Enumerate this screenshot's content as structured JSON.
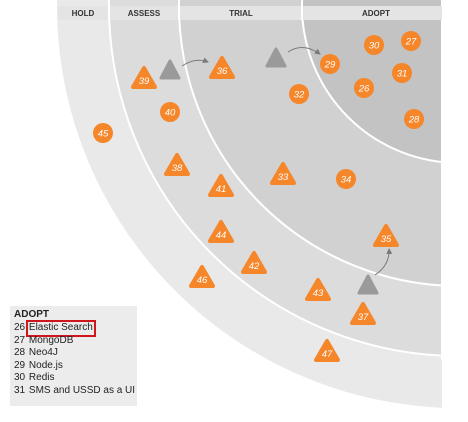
{
  "rings": [
    {
      "label": "HOLD",
      "color": "#e9e9e9"
    },
    {
      "label": "ASSESS",
      "color": "#dcdcdc"
    },
    {
      "label": "TRIAL",
      "color": "#d1d1d1"
    },
    {
      "label": "ADOPT",
      "color": "#c3c3c3"
    }
  ],
  "colors": {
    "blip": "#f5862a",
    "moved": "#9a9a9a",
    "ring_line": "#ffffff"
  },
  "blips": [
    {
      "id": "27",
      "shape": "circle",
      "ring": "ADOPT"
    },
    {
      "id": "30",
      "shape": "circle",
      "ring": "ADOPT"
    },
    {
      "id": "29",
      "shape": "circle",
      "ring": "ADOPT"
    },
    {
      "id": "31",
      "shape": "circle",
      "ring": "ADOPT"
    },
    {
      "id": "26",
      "shape": "circle",
      "ring": "ADOPT"
    },
    {
      "id": "28",
      "shape": "circle",
      "ring": "ADOPT"
    },
    {
      "id": "36",
      "shape": "triangle",
      "ring": "TRIAL"
    },
    {
      "id": "32",
      "shape": "circle",
      "ring": "TRIAL"
    },
    {
      "id": "33",
      "shape": "triangle",
      "ring": "TRIAL"
    },
    {
      "id": "34",
      "shape": "circle",
      "ring": "TRIAL"
    },
    {
      "id": "35",
      "shape": "triangle",
      "ring": "TRIAL"
    },
    {
      "id": "39",
      "shape": "triangle",
      "ring": "ASSESS"
    },
    {
      "id": "40",
      "shape": "circle",
      "ring": "ASSESS"
    },
    {
      "id": "38",
      "shape": "triangle",
      "ring": "ASSESS"
    },
    {
      "id": "41",
      "shape": "triangle",
      "ring": "ASSESS"
    },
    {
      "id": "44",
      "shape": "triangle",
      "ring": "ASSESS"
    },
    {
      "id": "42",
      "shape": "triangle",
      "ring": "ASSESS"
    },
    {
      "id": "43",
      "shape": "triangle",
      "ring": "ASSESS"
    },
    {
      "id": "37",
      "shape": "triangle",
      "ring": "ASSESS"
    },
    {
      "id": "45",
      "shape": "circle",
      "ring": "HOLD"
    },
    {
      "id": "46",
      "shape": "triangle",
      "ring": "HOLD"
    },
    {
      "id": "47",
      "shape": "triangle",
      "ring": "HOLD"
    }
  ],
  "legend": {
    "title": "ADOPT",
    "items": [
      {
        "num": "26",
        "name": "Elastic Search",
        "highlighted": true
      },
      {
        "num": "27",
        "name": "MongoDB",
        "highlighted": false
      },
      {
        "num": "28",
        "name": "Neo4J",
        "highlighted": false
      },
      {
        "num": "29",
        "name": "Node.js",
        "highlighted": false
      },
      {
        "num": "30",
        "name": "Redis",
        "highlighted": false
      },
      {
        "num": "31",
        "name": "SMS and USSD as a UI",
        "highlighted": false
      }
    ]
  }
}
